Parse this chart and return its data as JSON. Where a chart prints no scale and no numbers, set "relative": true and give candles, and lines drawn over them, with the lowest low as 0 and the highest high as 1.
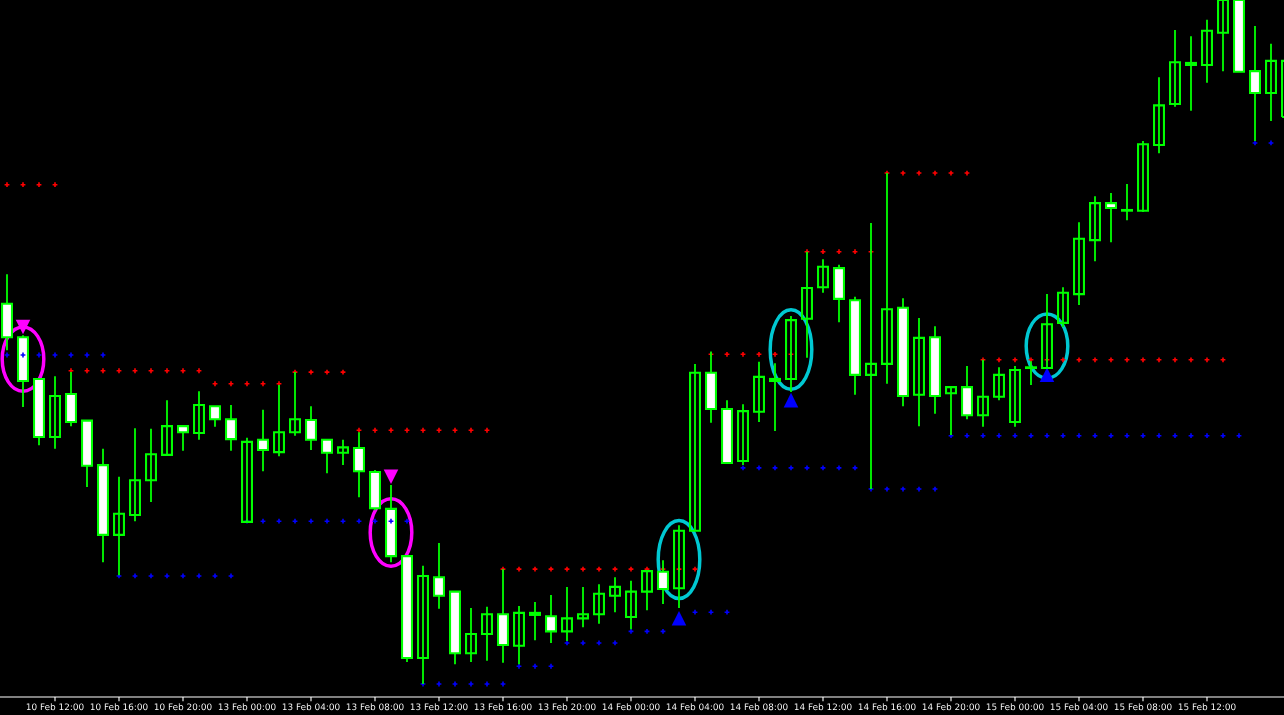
{
  "chart_data": {
    "type": "candlestick",
    "relative": true,
    "color": "#00ff00",
    "grid": false,
    "legend": false,
    "tick_labels": "x",
    "categories": [
      null,
      null,
      null,
      "10 Feb 12:00",
      null,
      null,
      null,
      "10 Feb 16:00",
      null,
      null,
      null,
      "10 Feb 20:00",
      null,
      null,
      null,
      "13 Feb 00:00",
      null,
      null,
      null,
      "13 Feb 04:00",
      null,
      null,
      null,
      "13 Feb 08:00",
      null,
      null,
      null,
      "13 Feb 12:00",
      null,
      null,
      null,
      "13 Feb 16:00",
      null,
      null,
      null,
      "13 Feb 20:00",
      null,
      null,
      null,
      "14 Feb 00:00",
      null,
      null,
      null,
      "14 Feb 04:00",
      null,
      null,
      null,
      "14 Feb 08:00",
      null,
      null,
      null,
      "14 Feb 12:00",
      null,
      null,
      null,
      "14 Feb 16:00",
      null,
      null,
      null,
      "14 Feb 20:00",
      null,
      null,
      null,
      "15 Feb 00:00",
      null,
      null,
      null,
      "15 Feb 04:00",
      null,
      null,
      null,
      "15 Feb 08:00",
      null,
      null,
      null,
      "15 Feb 12:00",
      null,
      null,
      null,
      null,
      null
    ],
    "ohlc": [
      [
        0.556,
        0.599,
        0.488,
        0.507
      ],
      [
        0.507,
        0.51,
        0.405,
        0.443
      ],
      [
        0.446,
        0.446,
        0.349,
        0.361
      ],
      [
        0.361,
        0.45,
        0.344,
        0.421
      ],
      [
        0.424,
        0.456,
        0.377,
        0.383
      ],
      [
        0.385,
        0.385,
        0.288,
        0.319
      ],
      [
        0.32,
        0.344,
        0.178,
        0.218
      ],
      [
        0.218,
        0.303,
        0.159,
        0.249
      ],
      [
        0.247,
        0.374,
        0.238,
        0.298
      ],
      [
        0.298,
        0.373,
        0.266,
        0.336
      ],
      [
        0.335,
        0.415,
        0.335,
        0.377
      ],
      [
        0.377,
        0.377,
        0.341,
        0.368
      ],
      [
        0.367,
        0.428,
        0.357,
        0.408
      ],
      [
        0.406,
        0.406,
        0.376,
        0.387
      ],
      [
        0.387,
        0.408,
        0.341,
        0.358
      ],
      [
        0.237,
        0.36,
        0.237,
        0.354
      ],
      [
        0.357,
        0.401,
        0.311,
        0.342
      ],
      [
        0.339,
        0.437,
        0.333,
        0.368
      ],
      [
        0.368,
        0.456,
        0.363,
        0.387
      ],
      [
        0.386,
        0.406,
        0.342,
        0.357
      ],
      [
        0.357,
        0.357,
        0.308,
        0.338
      ],
      [
        0.338,
        0.357,
        0.32,
        0.346
      ],
      [
        0.345,
        0.368,
        0.273,
        0.311
      ],
      [
        0.31,
        0.313,
        0.254,
        0.257
      ],
      [
        0.256,
        0.291,
        0.178,
        0.187
      ],
      [
        0.187,
        0.187,
        0.032,
        0.038
      ],
      [
        0.038,
        0.173,
        0.0,
        0.158
      ],
      [
        0.156,
        0.206,
        0.11,
        0.129
      ],
      [
        0.135,
        0.135,
        0.029,
        0.045
      ],
      [
        0.045,
        0.111,
        0.032,
        0.073
      ],
      [
        0.073,
        0.113,
        0.034,
        0.102
      ],
      [
        0.102,
        0.168,
        0.031,
        0.057
      ],
      [
        0.056,
        0.114,
        0.029,
        0.104
      ],
      [
        0.104,
        0.12,
        0.064,
        0.101
      ],
      [
        0.099,
        0.13,
        0.06,
        0.077
      ],
      [
        0.077,
        0.142,
        0.063,
        0.096
      ],
      [
        0.096,
        0.142,
        0.083,
        0.102
      ],
      [
        0.102,
        0.146,
        0.088,
        0.132
      ],
      [
        0.129,
        0.156,
        0.105,
        0.142
      ],
      [
        0.098,
        0.151,
        0.08,
        0.135
      ],
      [
        0.135,
        0.165,
        0.108,
        0.165
      ],
      [
        0.164,
        0.181,
        0.117,
        0.139
      ],
      [
        0.14,
        0.232,
        0.111,
        0.224
      ],
      [
        0.224,
        0.468,
        0.224,
        0.455
      ],
      [
        0.455,
        0.486,
        0.382,
        0.402
      ],
      [
        0.402,
        0.415,
        0.323,
        0.323
      ],
      [
        0.326,
        0.409,
        0.32,
        0.399
      ],
      [
        0.398,
        0.471,
        0.383,
        0.449
      ],
      [
        0.446,
        0.469,
        0.37,
        0.443
      ],
      [
        0.446,
        0.538,
        0.427,
        0.532
      ],
      [
        0.534,
        0.632,
        0.477,
        0.579
      ],
      [
        0.58,
        0.621,
        0.572,
        0.61
      ],
      [
        0.608,
        0.613,
        0.529,
        0.563
      ],
      [
        0.561,
        0.566,
        0.423,
        0.452
      ],
      [
        0.452,
        0.674,
        0.285,
        0.468
      ],
      [
        0.468,
        0.747,
        0.439,
        0.548
      ],
      [
        0.55,
        0.564,
        0.406,
        0.421
      ],
      [
        0.423,
        0.535,
        0.377,
        0.506
      ],
      [
        0.507,
        0.523,
        0.395,
        0.421
      ],
      [
        0.425,
        0.434,
        0.364,
        0.434
      ],
      [
        0.434,
        0.465,
        0.387,
        0.393
      ],
      [
        0.393,
        0.474,
        0.376,
        0.42
      ],
      [
        0.42,
        0.463,
        0.415,
        0.452
      ],
      [
        0.383,
        0.465,
        0.376,
        0.459
      ],
      [
        0.462,
        0.472,
        0.437,
        0.463
      ],
      [
        0.462,
        0.57,
        0.462,
        0.526
      ],
      [
        0.528,
        0.58,
        0.522,
        0.572
      ],
      [
        0.57,
        0.675,
        0.554,
        0.651
      ],
      [
        0.649,
        0.713,
        0.618,
        0.703
      ],
      [
        0.703,
        0.718,
        0.646,
        0.696
      ],
      [
        0.692,
        0.731,
        0.678,
        0.693
      ],
      [
        0.692,
        0.794,
        0.69,
        0.789
      ],
      [
        0.788,
        0.887,
        0.776,
        0.846
      ],
      [
        0.848,
        0.956,
        0.844,
        0.909
      ],
      [
        0.908,
        0.947,
        0.838,
        0.905
      ],
      [
        0.905,
        0.971,
        0.879,
        0.955
      ],
      [
        0.952,
        1.0,
        0.896,
        1.0
      ],
      [
        1.0,
        1.0,
        0.895,
        0.895
      ],
      [
        0.896,
        0.962,
        0.794,
        0.864
      ],
      [
        0.864,
        0.936,
        0.823,
        0.911
      ],
      [
        0.829,
        0.911,
        0.829,
        0.911
      ]
    ],
    "series": [
      {
        "type": "scatter",
        "marker": "cross",
        "color": "#ff0000",
        "values": [
          0.73,
          0.73,
          0.73,
          0.73,
          0.458,
          0.458,
          0.458,
          0.458,
          0.458,
          0.458,
          0.458,
          0.458,
          0.458,
          0.439,
          0.439,
          0.439,
          0.439,
          0.439,
          0.456,
          0.456,
          0.456,
          0.456,
          0.371,
          0.371,
          0.371,
          0.371,
          0.371,
          0.371,
          0.371,
          0.371,
          0.371,
          0.168,
          0.168,
          0.168,
          0.168,
          0.168,
          0.168,
          0.168,
          0.168,
          0.168,
          0.168,
          0.168,
          0.168,
          0.168,
          0.482,
          0.482,
          0.482,
          0.482,
          0.482,
          0.482,
          0.632,
          0.632,
          0.632,
          0.632,
          0.632,
          0.747,
          0.747,
          0.747,
          0.747,
          0.747,
          0.747,
          0.474,
          0.474,
          0.474,
          0.474,
          0.474,
          0.474,
          0.474,
          0.474,
          0.474,
          0.474,
          0.474,
          0.474,
          0.474,
          0.474,
          0.474,
          0.474,
          null,
          null,
          null,
          null
        ]
      },
      {
        "type": "scatter",
        "marker": "cross",
        "color": "#0000ff",
        "values": [
          0.481,
          0.481,
          0.481,
          0.481,
          0.481,
          0.481,
          0.481,
          0.158,
          0.158,
          0.158,
          0.158,
          0.158,
          0.158,
          0.158,
          0.158,
          0.238,
          0.238,
          0.238,
          0.238,
          0.238,
          0.238,
          0.238,
          0.238,
          0.238,
          0.238,
          0.238,
          0.0,
          0.0,
          0.0,
          0.0,
          0.0,
          0.0,
          0.026,
          0.026,
          0.026,
          0.06,
          0.06,
          0.06,
          0.06,
          0.077,
          0.077,
          0.077,
          null,
          0.105,
          0.105,
          0.105,
          0.316,
          0.316,
          0.316,
          0.316,
          0.316,
          0.316,
          0.316,
          0.316,
          0.285,
          0.285,
          0.285,
          0.285,
          0.285,
          0.363,
          0.363,
          0.363,
          0.363,
          0.363,
          0.363,
          0.363,
          0.363,
          0.363,
          0.363,
          0.363,
          0.363,
          0.363,
          0.363,
          0.363,
          0.363,
          0.363,
          0.363,
          0.363,
          0.791,
          0.791,
          null
        ]
      },
      {
        "type": "scatter",
        "marker": "triangle",
        "color": "#ff00ff",
        "values": [
          null,
          0.522,
          null,
          null,
          null,
          null,
          null,
          null,
          null,
          null,
          null,
          null,
          null,
          null,
          null,
          null,
          null,
          null,
          null,
          null,
          null,
          null,
          null,
          null,
          0.303,
          null,
          null,
          null,
          null,
          null,
          null,
          null,
          null,
          null,
          null,
          null,
          null,
          null,
          null,
          null,
          null,
          null,
          null,
          null,
          null,
          null,
          null,
          null,
          null,
          null,
          null,
          null,
          null,
          null,
          null,
          null,
          null,
          null,
          null,
          null,
          null,
          null,
          null,
          null,
          null,
          null,
          null,
          null,
          null,
          null,
          null,
          null,
          null,
          null,
          null,
          null,
          null,
          null,
          null,
          null,
          null
        ]
      },
      {
        "type": "scatter",
        "marker": "triangle",
        "color": "#0000ff",
        "values": [
          null,
          null,
          null,
          null,
          null,
          null,
          null,
          null,
          null,
          null,
          null,
          null,
          null,
          null,
          null,
          null,
          null,
          null,
          null,
          null,
          null,
          null,
          null,
          null,
          null,
          null,
          null,
          null,
          null,
          null,
          null,
          null,
          null,
          null,
          null,
          null,
          null,
          null,
          null,
          null,
          null,
          null,
          0.096,
          null,
          null,
          null,
          null,
          null,
          null,
          0.415,
          null,
          null,
          null,
          null,
          null,
          null,
          null,
          null,
          null,
          null,
          null,
          null,
          null,
          null,
          null,
          0.452,
          null,
          null,
          null,
          null,
          null,
          null,
          null,
          null,
          null,
          null,
          null,
          null,
          null,
          null,
          null
        ]
      }
    ]
  }
}
